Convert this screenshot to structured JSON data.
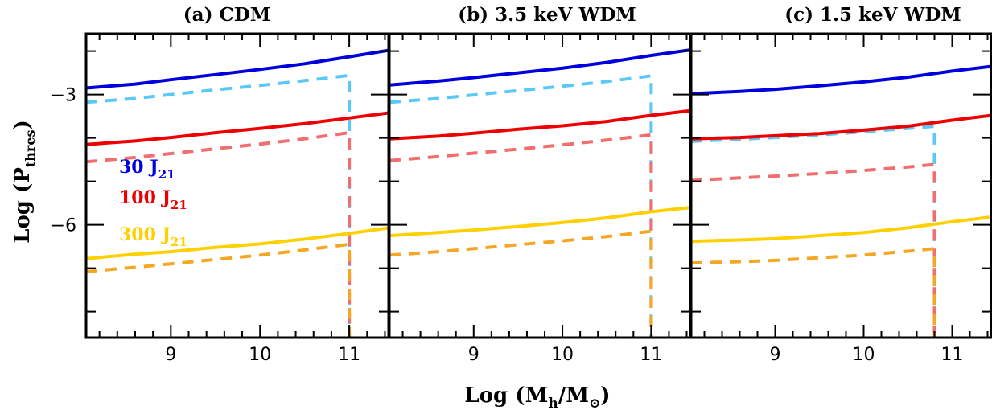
{
  "chart_data": [
    {
      "type": "line",
      "title": "(a) CDM",
      "xlim": [
        8.05,
        11.45
      ],
      "ylim": [
        -8.6,
        -1.6
      ],
      "series": [
        {
          "color": "#0000dd",
          "style": "solid",
          "x": [
            8.05,
            8.6,
            9.0,
            9.5,
            10.0,
            10.5,
            11.0,
            11.45
          ],
          "y": [
            -2.85,
            -2.76,
            -2.66,
            -2.54,
            -2.42,
            -2.29,
            -2.13,
            -1.98
          ]
        },
        {
          "color": "#5bc8f5",
          "style": "dashed",
          "x": [
            8.05,
            8.6,
            9.0,
            9.5,
            10.0,
            10.5,
            11.0,
            11.0
          ],
          "y": [
            -3.18,
            -3.09,
            -3.0,
            -2.89,
            -2.79,
            -2.68,
            -2.56,
            -8.6
          ]
        },
        {
          "color": "#ee0000",
          "style": "solid",
          "x": [
            8.05,
            8.6,
            9.0,
            9.5,
            10.0,
            10.5,
            11.0,
            11.45
          ],
          "y": [
            -4.15,
            -4.07,
            -3.99,
            -3.88,
            -3.78,
            -3.67,
            -3.54,
            -3.42
          ]
        },
        {
          "color": "#f26d6d",
          "style": "dashed",
          "x": [
            8.05,
            8.6,
            9.0,
            9.5,
            10.0,
            10.5,
            11.0,
            11.0
          ],
          "y": [
            -4.55,
            -4.45,
            -4.36,
            -4.25,
            -4.14,
            -4.02,
            -3.88,
            -8.6
          ]
        },
        {
          "color": "#ffd000",
          "style": "solid",
          "x": [
            8.05,
            8.6,
            9.0,
            9.5,
            10.0,
            10.5,
            11.0,
            11.45
          ],
          "y": [
            -6.78,
            -6.68,
            -6.62,
            -6.52,
            -6.44,
            -6.33,
            -6.2,
            -6.07
          ]
        },
        {
          "color": "#f5a623",
          "style": "dashed",
          "x": [
            8.05,
            8.6,
            9.0,
            9.5,
            10.0,
            10.5,
            11.0,
            11.0
          ],
          "y": [
            -7.08,
            -6.98,
            -6.9,
            -6.8,
            -6.7,
            -6.58,
            -6.45,
            -8.6
          ]
        }
      ],
      "x_ticks": [
        "9",
        "10",
        "11"
      ],
      "y_ticks": [
        "-3",
        "-6"
      ],
      "legend": {
        "placement": "middle-left",
        "entries": [
          {
            "text": "30 J",
            "sub": "21",
            "color": "#0000dd"
          },
          {
            "text": "100 J",
            "sub": "21",
            "color": "#ee0000"
          },
          {
            "text": "300 J",
            "sub": "21",
            "color": "#ffd000"
          }
        ]
      }
    },
    {
      "type": "line",
      "title": "(b) 3.5 keV WDM",
      "xlim": [
        8.05,
        11.45
      ],
      "ylim": [
        -8.6,
        -1.6
      ],
      "series": [
        {
          "color": "#0000dd",
          "style": "solid",
          "x": [
            8.05,
            8.6,
            9.0,
            9.5,
            10.0,
            10.5,
            11.0,
            11.45
          ],
          "y": [
            -2.78,
            -2.69,
            -2.61,
            -2.5,
            -2.39,
            -2.26,
            -2.1,
            -1.97
          ]
        },
        {
          "color": "#5bc8f5",
          "style": "dashed",
          "x": [
            8.05,
            8.6,
            9.0,
            9.5,
            10.0,
            10.5,
            11.0,
            11.0
          ],
          "y": [
            -3.18,
            -3.09,
            -3.01,
            -2.91,
            -2.81,
            -2.7,
            -2.57,
            -8.6
          ]
        },
        {
          "color": "#ee0000",
          "style": "solid",
          "x": [
            8.05,
            8.6,
            9.0,
            9.5,
            10.0,
            10.5,
            11.0,
            11.45
          ],
          "y": [
            -4.02,
            -3.96,
            -3.89,
            -3.8,
            -3.72,
            -3.62,
            -3.48,
            -3.37
          ]
        },
        {
          "color": "#f26d6d",
          "style": "dashed",
          "x": [
            8.05,
            8.6,
            9.0,
            9.5,
            10.0,
            10.5,
            11.0,
            11.0
          ],
          "y": [
            -4.52,
            -4.43,
            -4.35,
            -4.26,
            -4.16,
            -4.05,
            -3.93,
            -8.6
          ]
        },
        {
          "color": "#ffd000",
          "style": "solid",
          "x": [
            8.05,
            8.6,
            9.0,
            9.5,
            10.0,
            10.5,
            11.0,
            11.45
          ],
          "y": [
            -6.25,
            -6.18,
            -6.12,
            -6.04,
            -5.95,
            -5.84,
            -5.7,
            -5.6
          ]
        },
        {
          "color": "#f5a623",
          "style": "dashed",
          "x": [
            8.05,
            8.6,
            9.0,
            9.5,
            10.0,
            10.5,
            11.0,
            11.0
          ],
          "y": [
            -6.7,
            -6.62,
            -6.55,
            -6.46,
            -6.37,
            -6.27,
            -6.15,
            -8.6
          ]
        }
      ],
      "x_ticks": [
        "9",
        "10",
        "11"
      ],
      "y_ticks": [
        "-3",
        "-6"
      ]
    },
    {
      "type": "line",
      "title": "(c) 1.5 keV WDM",
      "xlim": [
        8.05,
        11.45
      ],
      "ylim": [
        -8.6,
        -1.6
      ],
      "series": [
        {
          "color": "#0000dd",
          "style": "solid",
          "x": [
            8.05,
            8.6,
            9.0,
            9.5,
            10.0,
            10.5,
            11.0,
            11.45
          ],
          "y": [
            -2.98,
            -2.93,
            -2.88,
            -2.8,
            -2.71,
            -2.6,
            -2.46,
            -2.35
          ]
        },
        {
          "color": "#5bc8f5",
          "style": "dashed",
          "x": [
            8.05,
            8.6,
            9.0,
            9.5,
            10.0,
            10.5,
            10.8,
            10.8
          ],
          "y": [
            -4.08,
            -4.03,
            -3.99,
            -3.93,
            -3.86,
            -3.78,
            -3.73,
            -8.6
          ]
        },
        {
          "color": "#ee0000",
          "style": "solid",
          "x": [
            8.05,
            8.6,
            9.0,
            9.5,
            10.0,
            10.5,
            11.0,
            11.45
          ],
          "y": [
            -4.02,
            -3.99,
            -3.95,
            -3.9,
            -3.82,
            -3.73,
            -3.59,
            -3.48
          ]
        },
        {
          "color": "#f26d6d",
          "style": "dashed",
          "x": [
            8.05,
            8.6,
            9.0,
            9.5,
            10.0,
            10.5,
            10.8,
            10.8
          ],
          "y": [
            -4.98,
            -4.92,
            -4.88,
            -4.82,
            -4.75,
            -4.67,
            -4.61,
            -8.6
          ]
        },
        {
          "color": "#ffd000",
          "style": "solid",
          "x": [
            8.05,
            8.6,
            9.0,
            9.5,
            10.0,
            10.5,
            11.0,
            11.45
          ],
          "y": [
            -6.38,
            -6.35,
            -6.32,
            -6.25,
            -6.18,
            -6.07,
            -5.93,
            -5.82
          ]
        },
        {
          "color": "#f5a623",
          "style": "dashed",
          "x": [
            8.05,
            8.6,
            9.0,
            9.5,
            10.0,
            10.5,
            10.8,
            10.8
          ],
          "y": [
            -6.88,
            -6.85,
            -6.82,
            -6.76,
            -6.7,
            -6.61,
            -6.55,
            -8.6
          ]
        }
      ],
      "x_ticks": [
        "9",
        "10",
        "11"
      ],
      "y_ticks": [
        "-3",
        "-6"
      ]
    }
  ],
  "axes": {
    "xlabel": "Log (M",
    "xlabel_sub": "h",
    "xlabel_mid": "/M",
    "xlabel_sub2": "⊙",
    "xlabel_end": ")",
    "ylabel": "Log (P",
    "ylabel_sub": "thres",
    "ylabel_end": ")"
  }
}
